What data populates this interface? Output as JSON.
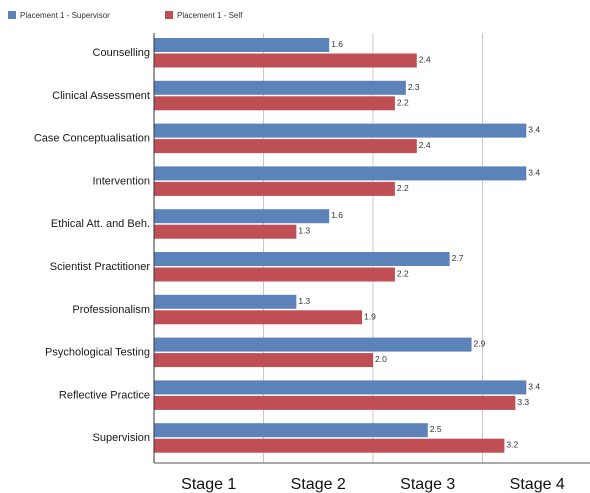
{
  "chart_data": {
    "type": "bar",
    "orientation": "horizontal",
    "categories": [
      "Counselling",
      "Clinical Assessment",
      "Case Conceptualisation",
      "Intervention",
      "Ethical Att. and Beh.",
      "Scientist Practitioner",
      "Professionalism",
      "Psychological Testing",
      "Reflective Practice",
      "Supervision"
    ],
    "series": [
      {
        "name": "Placement 1 - Supervisor",
        "color": "#5b82b9",
        "values": [
          1.6,
          2.3,
          3.4,
          3.4,
          1.6,
          2.7,
          1.3,
          2.9,
          3.4,
          2.5
        ],
        "labels": [
          "1.6",
          "2.3",
          "3.4",
          "3.4",
          "1.6",
          "2.7",
          "1.3",
          "2.9",
          "3.4",
          "2.5"
        ]
      },
      {
        "name": "Placement 1 - Self",
        "color": "#bf4e55",
        "values": [
          2.4,
          2.2,
          2.4,
          2.2,
          1.3,
          2.2,
          1.9,
          2.0,
          3.3,
          3.2
        ],
        "labels": [
          "2.4",
          "2.2",
          "2.4",
          "2.2",
          "1.3",
          "2.2",
          "1.9",
          "2.0",
          "3.3",
          "3.2"
        ]
      }
    ],
    "x_ticks": [
      {
        "value": 1,
        "label": "Stage 1"
      },
      {
        "value": 2,
        "label": "Stage 2"
      },
      {
        "value": 3,
        "label": "Stage 3"
      },
      {
        "value": 4,
        "label": "Stage 4"
      }
    ],
    "xlim": [
      0,
      4
    ],
    "gridlines": true,
    "legend_position": "top-left"
  }
}
